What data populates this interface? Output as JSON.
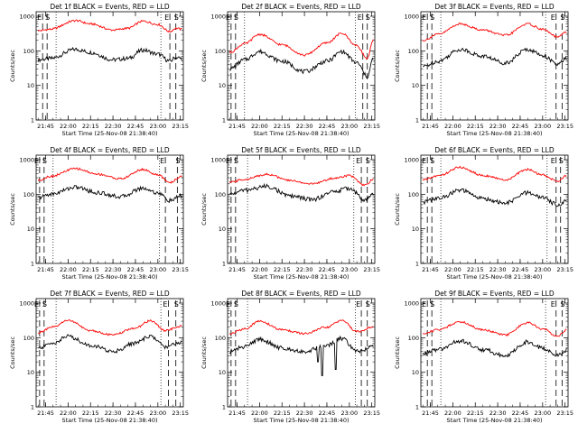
{
  "figure": {
    "xlabel": "Start Time (25-Nov-08 21:38:40)",
    "ylabel": "Counts/sec"
  },
  "chart_data": [
    {
      "type": "line",
      "title": "Det 1f BLACK = Events, RED = LLD",
      "xlabel": "Start Time (25-Nov-08 21:38:40)",
      "ylabel": "Counts/sec",
      "y_scale": "log",
      "ylim": [
        1,
        1000
      ],
      "y_ticks": [
        "1",
        "10",
        "100",
        "1000"
      ],
      "x_ticks": [
        "21:45",
        "22:00",
        "22:15",
        "22:30",
        "22:45",
        "23:00",
        "23:15"
      ],
      "markers": [
        {
          "label": "E",
          "time": "21:43"
        },
        {
          "label": "S",
          "time": "21:46"
        },
        {
          "label": "E",
          "time": "23:08"
        },
        {
          "label": "S",
          "time": "23:12"
        }
      ],
      "dotted_lines": [
        "21:52",
        "23:02"
      ],
      "series": [
        {
          "name": "Events",
          "color": "#000000",
          "x": [
            "21:40",
            "21:48",
            "22:05",
            "22:15",
            "22:30",
            "22:40",
            "22:50",
            "23:00",
            "23:08",
            "23:12",
            "23:16"
          ],
          "y": [
            55,
            60,
            110,
            90,
            55,
            60,
            105,
            80,
            50,
            65,
            60
          ]
        },
        {
          "name": "LLD",
          "color": "#ff0000",
          "x": [
            "21:40",
            "21:48",
            "22:05",
            "22:15",
            "22:30",
            "22:40",
            "22:50",
            "23:00",
            "23:08",
            "23:12",
            "23:16"
          ],
          "y": [
            380,
            420,
            750,
            600,
            400,
            450,
            720,
            580,
            360,
            450,
            420
          ]
        }
      ]
    },
    {
      "type": "line",
      "title": "Det 2f BLACK = Events, RED = LLD",
      "xlabel": "Start Time (25-Nov-08 21:38:40)",
      "ylabel": "Counts/sec",
      "y_scale": "log",
      "ylim": [
        1,
        1000
      ],
      "y_ticks": [
        "1",
        "10",
        "100",
        "1000"
      ],
      "x_ticks": [
        "21:45",
        "22:00",
        "22:15",
        "22:30",
        "22:45",
        "23:00",
        "23:15"
      ],
      "markers": [
        {
          "label": "E",
          "time": "21:41"
        },
        {
          "label": "S",
          "time": "21:44"
        },
        {
          "label": "E",
          "time": "23:09"
        },
        {
          "label": "S",
          "time": "23:12"
        }
      ],
      "dotted_lines": [
        "21:50",
        "23:04"
      ],
      "series": [
        {
          "name": "Events",
          "color": "#000000",
          "x": [
            "21:40",
            "21:50",
            "22:00",
            "22:15",
            "22:30",
            "22:45",
            "22:55",
            "23:05",
            "23:12",
            "23:16"
          ],
          "y": [
            30,
            55,
            95,
            50,
            25,
            50,
            95,
            45,
            18,
            60
          ]
        },
        {
          "name": "LLD",
          "color": "#ff0000",
          "x": [
            "21:40",
            "21:50",
            "22:00",
            "22:15",
            "22:30",
            "22:45",
            "22:55",
            "23:05",
            "23:12",
            "23:16"
          ],
          "y": [
            90,
            160,
            300,
            150,
            75,
            170,
            320,
            140,
            60,
            200
          ]
        }
      ]
    },
    {
      "type": "line",
      "title": "Det 3f BLACK = Events, RED = LLD",
      "xlabel": "Start Time (25-Nov-08 21:38:40)",
      "ylabel": "Counts/sec",
      "y_scale": "log",
      "ylim": [
        1,
        1000
      ],
      "y_ticks": [
        "1",
        "10",
        "100",
        "1000"
      ],
      "x_ticks": [
        "21:45",
        "22:00",
        "22:15",
        "22:30",
        "22:45",
        "23:00",
        "23:15"
      ],
      "markers": [
        {
          "label": "E",
          "time": "21:43"
        },
        {
          "label": "S",
          "time": "21:46"
        },
        {
          "label": "E",
          "time": "23:09"
        },
        {
          "label": "S",
          "time": "23:13"
        }
      ],
      "dotted_lines": [
        "21:52",
        "23:02"
      ],
      "series": [
        {
          "name": "Events",
          "color": "#000000",
          "x": [
            "21:40",
            "21:50",
            "22:05",
            "22:20",
            "22:35",
            "22:50",
            "23:00",
            "23:10",
            "23:16"
          ],
          "y": [
            35,
            50,
            110,
            70,
            45,
            110,
            75,
            40,
            60
          ]
        },
        {
          "name": "LLD",
          "color": "#ff0000",
          "x": [
            "21:40",
            "21:50",
            "22:05",
            "22:20",
            "22:35",
            "22:50",
            "23:00",
            "23:10",
            "23:16"
          ],
          "y": [
            200,
            300,
            600,
            400,
            280,
            600,
            420,
            250,
            350
          ]
        }
      ]
    },
    {
      "type": "line",
      "title": "Det 4f BLACK = Events, RED = LLD",
      "xlabel": "Start Time (25-Nov-08 21:38:40)",
      "ylabel": "Counts/sec",
      "y_scale": "log",
      "ylim": [
        1,
        1000
      ],
      "y_ticks": [
        "1",
        "10",
        "100",
        "1000"
      ],
      "x_ticks": [
        "21:45",
        "22:00",
        "22:15",
        "22:30",
        "22:45",
        "23:00",
        "23:15"
      ],
      "markers": [
        {
          "label": "E",
          "time": "21:41"
        },
        {
          "label": "S",
          "time": "21:44"
        },
        {
          "label": "E",
          "time": "23:05"
        },
        {
          "label": "S",
          "time": "23:13"
        }
      ],
      "dotted_lines": [
        "21:50",
        "23:01"
      ],
      "series": [
        {
          "name": "Events",
          "color": "#000000",
          "x": [
            "21:40",
            "21:48",
            "22:05",
            "22:20",
            "22:35",
            "22:50",
            "23:00",
            "23:08",
            "23:16"
          ],
          "y": [
            80,
            100,
            160,
            110,
            85,
            150,
            110,
            65,
            90
          ]
        },
        {
          "name": "LLD",
          "color": "#ff0000",
          "x": [
            "21:40",
            "21:48",
            "22:05",
            "22:20",
            "22:35",
            "22:50",
            "23:00",
            "23:08",
            "23:16"
          ],
          "y": [
            250,
            330,
            550,
            380,
            280,
            520,
            360,
            220,
            330
          ]
        }
      ]
    },
    {
      "type": "line",
      "title": "Det 5f BLACK = Events, RED = LLD",
      "xlabel": "Start Time (25-Nov-08 21:38:40)",
      "ylabel": "Counts/sec",
      "y_scale": "log",
      "ylim": [
        1,
        1000
      ],
      "y_ticks": [
        "1",
        "10",
        "100",
        "1000"
      ],
      "x_ticks": [
        "21:45",
        "22:00",
        "22:15",
        "22:30",
        "22:45",
        "23:00",
        "23:15"
      ],
      "markers": [
        {
          "label": "E",
          "time": "21:41"
        },
        {
          "label": "S",
          "time": "21:44"
        },
        {
          "label": "E",
          "time": "23:08"
        },
        {
          "label": "S",
          "time": "23:12"
        }
      ],
      "dotted_lines": [
        "21:52",
        "23:03"
      ],
      "series": [
        {
          "name": "Events",
          "color": "#000000",
          "x": [
            "21:40",
            "21:50",
            "22:05",
            "22:20",
            "22:35",
            "22:50",
            "23:00",
            "23:10",
            "23:16"
          ],
          "y": [
            100,
            130,
            170,
            90,
            70,
            120,
            150,
            70,
            95
          ]
        },
        {
          "name": "LLD",
          "color": "#ff0000",
          "x": [
            "21:40",
            "21:50",
            "22:05",
            "22:20",
            "22:35",
            "22:50",
            "23:00",
            "23:10",
            "23:16"
          ],
          "y": [
            220,
            270,
            380,
            250,
            200,
            290,
            350,
            180,
            260
          ]
        }
      ]
    },
    {
      "type": "line",
      "title": "Det 6f BLACK = Events, RED = LLD",
      "xlabel": "Start Time (25-Nov-08 21:38:40)",
      "ylabel": "Counts/sec",
      "y_scale": "log",
      "ylim": [
        1,
        1000
      ],
      "y_ticks": [
        "1",
        "10",
        "100",
        "1000"
      ],
      "x_ticks": [
        "21:45",
        "22:00",
        "22:15",
        "22:30",
        "22:45",
        "23:00",
        "23:15"
      ],
      "markers": [
        {
          "label": "E",
          "time": "21:43"
        },
        {
          "label": "S",
          "time": "21:46"
        },
        {
          "label": "E",
          "time": "23:09"
        },
        {
          "label": "S",
          "time": "23:12"
        }
      ],
      "dotted_lines": [
        "21:52",
        "23:03"
      ],
      "series": [
        {
          "name": "Events",
          "color": "#000000",
          "x": [
            "21:40",
            "21:50",
            "22:05",
            "22:20",
            "22:35",
            "22:50",
            "23:00",
            "23:10",
            "23:16"
          ],
          "y": [
            60,
            75,
            130,
            75,
            55,
            110,
            80,
            50,
            65
          ]
        },
        {
          "name": "LLD",
          "color": "#ff0000",
          "x": [
            "21:40",
            "21:50",
            "22:05",
            "22:20",
            "22:35",
            "22:50",
            "23:00",
            "23:10",
            "23:16"
          ],
          "y": [
            260,
            340,
            600,
            350,
            260,
            520,
            360,
            240,
            340
          ]
        }
      ]
    },
    {
      "type": "line",
      "title": "Det 7f BLACK = Events, RED = LLD",
      "xlabel": "Start Time (25-Nov-08 21:38:40)",
      "ylabel": "Counts/sec",
      "y_scale": "log",
      "ylim": [
        1,
        1000
      ],
      "y_ticks": [
        "1",
        "10",
        "100",
        "1000"
      ],
      "x_ticks": [
        "21:45",
        "22:00",
        "22:15",
        "22:30",
        "22:45",
        "23:00",
        "23:15"
      ],
      "markers": [
        {
          "label": "E",
          "time": "21:41"
        },
        {
          "label": "S",
          "time": "21:44"
        },
        {
          "label": "E",
          "time": "23:07"
        },
        {
          "label": "S",
          "time": "23:12"
        }
      ],
      "dotted_lines": [
        "21:52",
        "23:02"
      ],
      "series": [
        {
          "name": "Events",
          "color": "#000000",
          "x": [
            "21:40",
            "21:50",
            "22:00",
            "22:15",
            "22:30",
            "22:45",
            "22:55",
            "23:05",
            "23:16"
          ],
          "y": [
            50,
            70,
            110,
            60,
            40,
            70,
            110,
            55,
            75
          ]
        },
        {
          "name": "LLD",
          "color": "#ff0000",
          "x": [
            "21:40",
            "21:50",
            "22:00",
            "22:15",
            "22:30",
            "22:45",
            "22:55",
            "23:05",
            "23:16"
          ],
          "y": [
            140,
            200,
            320,
            160,
            120,
            190,
            310,
            160,
            220
          ]
        }
      ]
    },
    {
      "type": "line",
      "title": "Det 8f BLACK = Events, RED = LLD",
      "xlabel": "Start Time (25-Nov-08 21:38:40)",
      "ylabel": "Counts/sec",
      "y_scale": "log",
      "ylim": [
        1,
        1000
      ],
      "y_ticks": [
        "1",
        "10",
        "100",
        "1000"
      ],
      "x_ticks": [
        "21:45",
        "22:00",
        "22:15",
        "22:30",
        "22:45",
        "23:00",
        "23:15"
      ],
      "markers": [
        {
          "label": "E",
          "time": "21:41"
        },
        {
          "label": "S",
          "time": "21:44"
        },
        {
          "label": "E",
          "time": "23:08"
        },
        {
          "label": "S",
          "time": "23:12"
        }
      ],
      "dotted_lines": [
        "21:52",
        "23:04"
      ],
      "series": [
        {
          "name": "Events",
          "color": "#000000",
          "x": [
            "21:40",
            "21:50",
            "22:00",
            "22:15",
            "22:30",
            "22:45",
            "22:55",
            "23:05",
            "23:16"
          ],
          "y": [
            40,
            55,
            90,
            50,
            40,
            60,
            95,
            40,
            55
          ]
        },
        {
          "name": "LLD",
          "color": "#ff0000",
          "x": [
            "21:40",
            "21:50",
            "22:00",
            "22:15",
            "22:30",
            "22:45",
            "22:55",
            "23:05",
            "23:16"
          ],
          "y": [
            130,
            180,
            300,
            170,
            130,
            200,
            320,
            150,
            200
          ]
        }
      ],
      "dips": [
        {
          "time": "22:39",
          "value": 20
        },
        {
          "time": "22:42",
          "value": 8
        },
        {
          "time": "22:51",
          "value": 12
        }
      ]
    },
    {
      "type": "line",
      "title": "Det 9f BLACK = Events, RED = LLD",
      "xlabel": "Start Time (25-Nov-08 21:38:40)",
      "ylabel": "Counts/sec",
      "y_scale": "log",
      "ylim": [
        1,
        1000
      ],
      "y_ticks": [
        "1",
        "10",
        "100",
        "1000"
      ],
      "x_ticks": [
        "21:45",
        "22:00",
        "22:15",
        "22:30",
        "22:45",
        "23:00",
        "23:15"
      ],
      "markers": [
        {
          "label": "E",
          "time": "21:43"
        },
        {
          "label": "S",
          "time": "21:46"
        },
        {
          "label": "E",
          "time": "23:09"
        },
        {
          "label": "S",
          "time": "23:13"
        }
      ],
      "dotted_lines": [
        "21:52",
        "23:02"
      ],
      "series": [
        {
          "name": "Events",
          "color": "#000000",
          "x": [
            "21:40",
            "21:50",
            "22:05",
            "22:20",
            "22:35",
            "22:50",
            "23:00",
            "23:10",
            "23:16"
          ],
          "y": [
            35,
            45,
            80,
            45,
            30,
            75,
            50,
            30,
            45
          ]
        },
        {
          "name": "LLD",
          "color": "#ff0000",
          "x": [
            "21:40",
            "21:50",
            "22:05",
            "22:20",
            "22:35",
            "22:50",
            "23:00",
            "23:10",
            "23:16"
          ],
          "y": [
            130,
            170,
            290,
            170,
            120,
            270,
            180,
            110,
            170
          ]
        }
      ]
    }
  ]
}
